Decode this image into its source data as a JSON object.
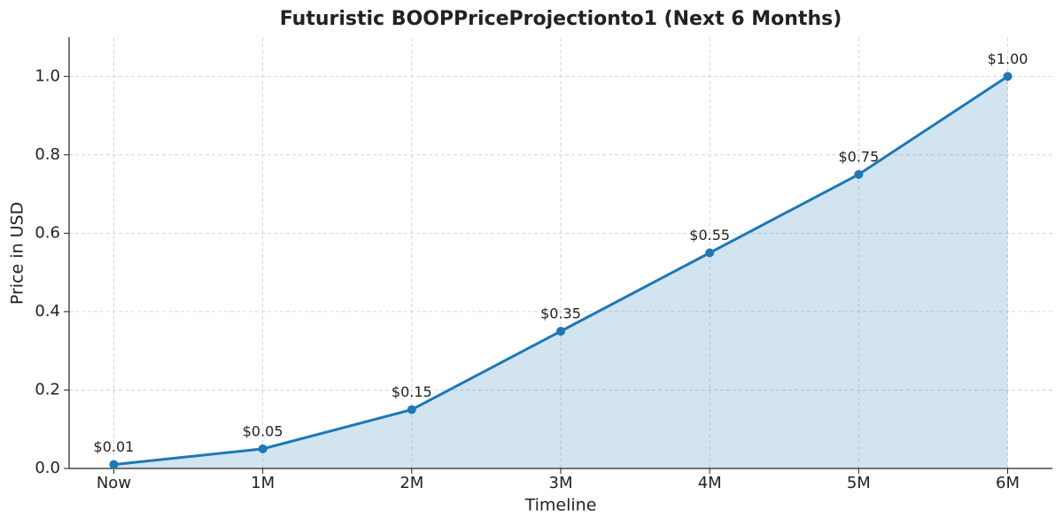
{
  "chart_data": {
    "type": "line",
    "title": "Futuristic BOOPPriceProjectionto1 (Next 6 Months)",
    "x_label": "Timeline",
    "y_label": "Price in USD",
    "categories": [
      "Now",
      "1M",
      "2M",
      "3M",
      "4M",
      "5M",
      "6M"
    ],
    "series": [
      {
        "name": "BOOP",
        "color": "#1f77b4",
        "values": [
          0.01,
          0.05,
          0.15,
          0.35,
          0.55,
          0.75,
          1.0
        ],
        "value_labels": [
          "$0.01",
          "$0.05",
          "$0.15",
          "$0.35",
          "$0.55",
          "$0.75",
          "$1.00"
        ]
      }
    ],
    "ylim": [
      0,
      1.1
    ],
    "yticks": [
      {
        "value": 0,
        "label": "0.0"
      },
      0.2,
      0.4,
      0.6,
      0.8,
      {
        "value": 1,
        "label": "1.0"
      }
    ],
    "grid": true,
    "fill": true
  }
}
